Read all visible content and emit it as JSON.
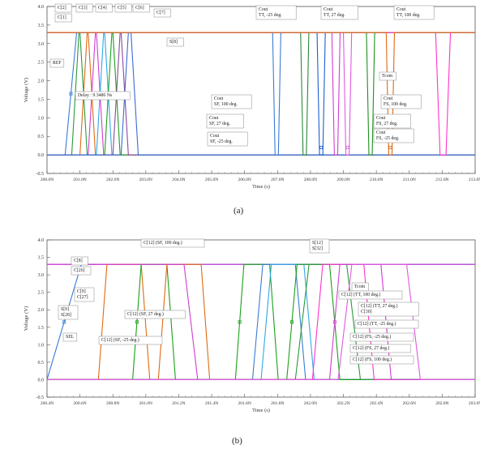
{
  "figure": {
    "caption_a": "(a)",
    "caption_b": "(b)"
  },
  "chart_data": [
    {
      "type": "line",
      "id": "a",
      "xlabel": "Time (s)",
      "ylabel": "Voltage (V)",
      "ylim": [
        -0.5,
        4.0
      ],
      "xlim": [
        200.0,
        213.0
      ],
      "x_ticks": [
        "200.0N",
        "201.0N",
        "202.0N",
        "203.0N",
        "204.0N",
        "205.0N",
        "206.0N",
        "207.0N",
        "208.0N",
        "209.0N",
        "210.0N",
        "211.0N",
        "212.0N",
        "213.0N"
      ],
      "y_ticks": [
        "-0.5",
        "0.0",
        "0.5",
        "1.0",
        "1.5",
        "2.0",
        "2.5",
        "3.0",
        "3.5",
        "4.0"
      ],
      "grid": false,
      "series": [
        {
          "name": "REF",
          "color": "#3a7bd5",
          "kind": "rise",
          "x": 200.55,
          "w": 0.35
        },
        {
          "name": "C[2]",
          "color": "#2a9a3a",
          "kind": "pulse",
          "x": 200.75,
          "w": 0.22,
          "end": 201.0
        },
        {
          "name": "C[3]",
          "color": "#e06a10",
          "kind": "pulse",
          "x": 201.0,
          "w": 0.22,
          "end": 201.25
        },
        {
          "name": "C[4]",
          "color": "#d23cd2",
          "kind": "pulse",
          "x": 201.25,
          "w": 0.22,
          "end": 201.5
        },
        {
          "name": "C[5]",
          "color": "#2fa8e8",
          "kind": "pulse",
          "x": 201.5,
          "w": 0.22,
          "end": 201.75
        },
        {
          "name": "C[6]",
          "color": "#1aa01a",
          "kind": "pulse",
          "x": 201.75,
          "w": 0.22,
          "end": 202.0
        },
        {
          "name": "C[7]",
          "color": "#8a4a9a",
          "kind": "pulse",
          "x": 202.0,
          "w": 0.22,
          "end": 202.25
        },
        {
          "name": "S[8]",
          "color": "#3a6ad5",
          "kind": "pulse",
          "x": 202.25,
          "w": 0.22,
          "end": 202.55
        },
        {
          "name": "Cout TT, -25 deg.",
          "color": "#3a7bd5",
          "kind": "dip",
          "x": 206.85,
          "w": 0.25
        },
        {
          "name": "Cout SF, -25 deg.",
          "color": "#1a5fd0",
          "kind": "dip",
          "x": 208.2,
          "w": 0.25
        },
        {
          "name": "Cout SF, 100 deg.",
          "color": "#2a8a3a",
          "kind": "dip",
          "x": 207.7,
          "w": 0.25
        },
        {
          "name": "Cout TT, 27 deg.",
          "color": "#d23cd2",
          "kind": "dip",
          "x": 208.65,
          "w": 0.25
        },
        {
          "name": "Cout FS, 27 deg.",
          "color": "#e05ae0",
          "kind": "dip",
          "x": 209.0,
          "w": 0.25
        },
        {
          "name": "Cout FS, -25 deg.",
          "color": "#1f8f1f",
          "kind": "dip",
          "x": 209.7,
          "w": 0.25
        },
        {
          "name": "Cout TT, 100 deg.",
          "color": "#ff33cc",
          "kind": "dip",
          "x": 211.8,
          "w": 0.45
        },
        {
          "name": "Cout FS, 100 deg.",
          "color": "#e06a10",
          "kind": "dip",
          "x": 210.3,
          "w": 0.25
        }
      ],
      "labels": [
        {
          "text": "C[2]",
          "series": "C[2]"
        },
        {
          "text": "C[3]",
          "series": "C[3]"
        },
        {
          "text": "C[4]",
          "series": "C[4]"
        },
        {
          "text": "C[5]",
          "series": "C[5]"
        },
        {
          "text": "C[6]",
          "series": "C[6]"
        },
        {
          "text": "C[1]",
          "series": "C[2]"
        },
        {
          "text": "C[7]",
          "series": "C[7]"
        },
        {
          "text": "S[8]",
          "series": "S[8]"
        },
        {
          "text": "REF",
          "series": "REF"
        },
        {
          "text": "Delay : 9.3486 Ns",
          "series": "REF"
        },
        {
          "text": "Cout\nTT, -25 deg.",
          "series": "Cout TT, -25 deg."
        },
        {
          "text": "Cout\nTT, 27 deg.",
          "series": "Cout TT, 27 deg."
        },
        {
          "text": "Cout\nTT, 100 deg.",
          "series": "Cout TT, 100 deg."
        },
        {
          "text": "Tcom",
          "series": "Cout TT, 100 deg."
        },
        {
          "text": "Cout\nSF, 100 deg.",
          "series": "Cout SF, 100 deg."
        },
        {
          "text": "Cout\nFS, 100 deg.",
          "series": "Cout FS, 100 deg."
        },
        {
          "text": "Cout\nSF, 27 deg.",
          "series": "Cout SF, -25 deg."
        },
        {
          "text": "Cout\nFS, 27 deg.",
          "series": "Cout FS, 27 deg."
        },
        {
          "text": "Cout\nSF, -25 deg.",
          "series": "Cout SF, -25 deg."
        },
        {
          "text": "Cout\nFS, -25 deg.",
          "series": "Cout FS, -25 deg."
        }
      ]
    },
    {
      "type": "line",
      "id": "b",
      "xlabel": "Time (s)",
      "ylabel": "Voltage (V)",
      "ylim": [
        -0.5,
        4.0
      ],
      "xlim": [
        200.4,
        202.9
      ],
      "x_ticks": [
        "200.4N",
        "200.6N",
        "200.8N",
        "201.0N",
        "201.2N",
        "201.4N",
        "201.6N",
        "201.8N",
        "202.0N",
        "202.2N",
        "202.4N",
        "202.6N",
        "202.8N",
        "203.0N"
      ],
      "y_ticks": [
        "-0.5",
        "0.0",
        "0.5",
        "1.0",
        "1.5",
        "2.0",
        "2.5",
        "3.0",
        "3.5",
        "4.0"
      ],
      "grid": false,
      "series": [
        {
          "name": "SEL",
          "color": "#3a7bd5",
          "kind": "rise",
          "x": 200.4,
          "w": 0.2
        },
        {
          "name": "C[8]",
          "color": "#d23cd2",
          "kind": "high",
          "x": 200.4,
          "w": 0.0
        },
        {
          "name": "C[9]",
          "color": "#e06a10",
          "kind": "pulse",
          "x": 200.7,
          "w": 0.05,
          "end": 200.95
        },
        {
          "name": "S[9]",
          "color": "#1aa01a",
          "kind": "pulse",
          "x": 200.9,
          "w": 0.05,
          "end": 201.1
        },
        {
          "name": "C[12] (SF, 100 deg.)",
          "color": "#e06a10",
          "kind": "pulse",
          "x": 201.05,
          "w": 0.05,
          "end": 201.3
        },
        {
          "name": "C[12] (SF, 27 deg.)",
          "color": "#d23cd2",
          "kind": "fall",
          "x": 201.2,
          "w": 0.08
        },
        {
          "name": "C[12] (SF, -25 deg.)",
          "color": "#1aa01a",
          "kind": "pulse",
          "x": 201.5,
          "w": 0.05,
          "end": 201.7
        },
        {
          "name": "C[12] (TT, 100 deg.)",
          "color": "#3a7bd5",
          "kind": "pulse",
          "x": 201.6,
          "w": 0.06,
          "end": 201.85
        },
        {
          "name": "C[12] (TT, 27 deg.)",
          "color": "#2fa8e8",
          "kind": "pulse",
          "x": 201.65,
          "w": 0.06,
          "end": 201.9
        },
        {
          "name": "C[12] (TT, -25 deg.)",
          "color": "#1aa01a",
          "kind": "pulse",
          "x": 201.8,
          "w": 0.06,
          "end": 202.05
        },
        {
          "name": "S[12]",
          "color": "#2a9a3a",
          "kind": "pulse",
          "x": 201.85,
          "w": 0.08,
          "end": 202.15
        },
        {
          "name": "C[12] (FS, -25 deg.)",
          "color": "#ff33cc",
          "kind": "pulse",
          "x": 201.95,
          "w": 0.06,
          "end": 202.25
        },
        {
          "name": "C[12] (FS, 27 deg.)",
          "color": "#d23cd2",
          "kind": "pulse",
          "x": 202.05,
          "w": 0.06,
          "end": 202.35
        },
        {
          "name": "C[12] (FS, 100 deg.)",
          "color": "#e05ae0",
          "kind": "pulse",
          "x": 202.1,
          "w": 0.08,
          "end": 202.5
        }
      ],
      "labels": [
        {
          "text": "C[8]",
          "series": "C[8]"
        },
        {
          "text": "C[26]",
          "series": "C[8]"
        },
        {
          "text": "C[12] (SF, 100 deg.)",
          "series": "C[12] (SF, 100 deg.)"
        },
        {
          "text": "S[12]\nS[32]",
          "series": "S[12]"
        },
        {
          "text": "C[9]\nC[27]",
          "series": "C[9]"
        },
        {
          "text": "C[12] (SF, 27 deg.)",
          "series": "C[12] (SF, 27 deg.)"
        },
        {
          "text": "Tcom",
          "series": "S[12]"
        },
        {
          "text": "S[9]\nS[28]",
          "series": "S[9]"
        },
        {
          "text": "C[12] (TT, 100 deg.)",
          "series": "C[12] (TT, 100 deg.)"
        },
        {
          "text": "C[12] (TT, 27 deg.)\nC[30]",
          "series": "C[12] (TT, 27 deg.)"
        },
        {
          "text": "C[12] (TT, -25 deg.)",
          "series": "C[12] (TT, -25 deg.)"
        },
        {
          "text": "SEL",
          "series": "SEL"
        },
        {
          "text": "C[12] (SF, -25 deg.)",
          "series": "C[12] (SF, -25 deg.)"
        },
        {
          "text": "C[12] (FS, -25 deg.)",
          "series": "C[12] (FS, -25 deg.)"
        },
        {
          "text": "C[12] (FS, 27 deg.)",
          "series": "C[12] (FS, 27 deg.)"
        },
        {
          "text": "C[12] (FS, 100 deg.)",
          "series": "C[12] (FS, 100 deg.)"
        }
      ]
    }
  ]
}
